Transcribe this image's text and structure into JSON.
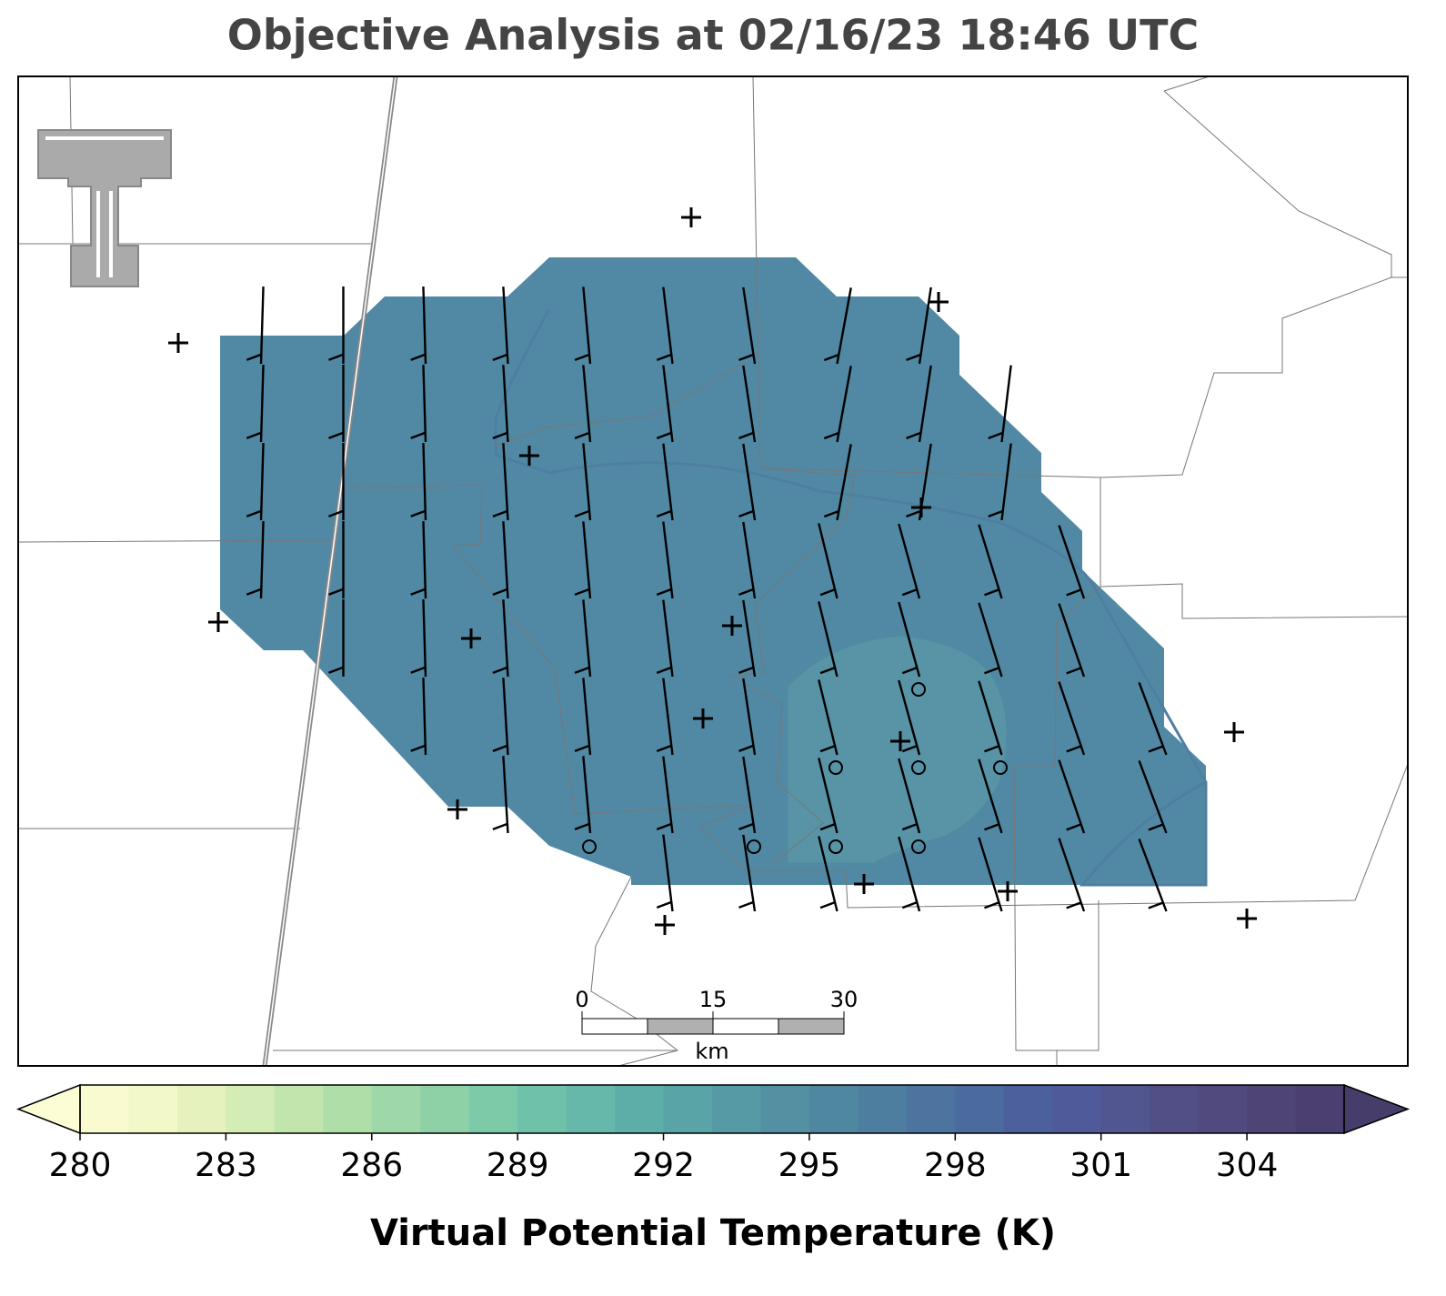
{
  "title": "Objective Analysis at 02/16/23 18:46 UTC",
  "colorbar": {
    "label": "Virtual Potential Temperature (K)",
    "lim": [
      280,
      306
    ],
    "ticks": [
      280,
      283,
      286,
      289,
      292,
      295,
      298,
      301,
      304
    ],
    "colors": [
      "#fafad0",
      "#f3f8c8",
      "#e5f2bd",
      "#d4ecb5",
      "#c2e5ae",
      "#b0dea8",
      "#9fd8a8",
      "#8ed1a6",
      "#7dcaa8",
      "#6fc1aa",
      "#66b8aa",
      "#5daea8",
      "#58a4a6",
      "#559aa4",
      "#5290a2",
      "#5087a0",
      "#4e7e9f",
      "#4c749e",
      "#4b6a9e",
      "#4b609d",
      "#4f5a9a",
      "#515590",
      "#514f86",
      "#504a7e",
      "#4f4575",
      "#4a3f6e"
    ],
    "under_color": "#fdfdd5",
    "over_color": "#463d6b"
  },
  "scale_bar": {
    "lim": [
      0,
      30
    ],
    "ticks": [
      0,
      15,
      30
    ],
    "unit": "km"
  }
}
